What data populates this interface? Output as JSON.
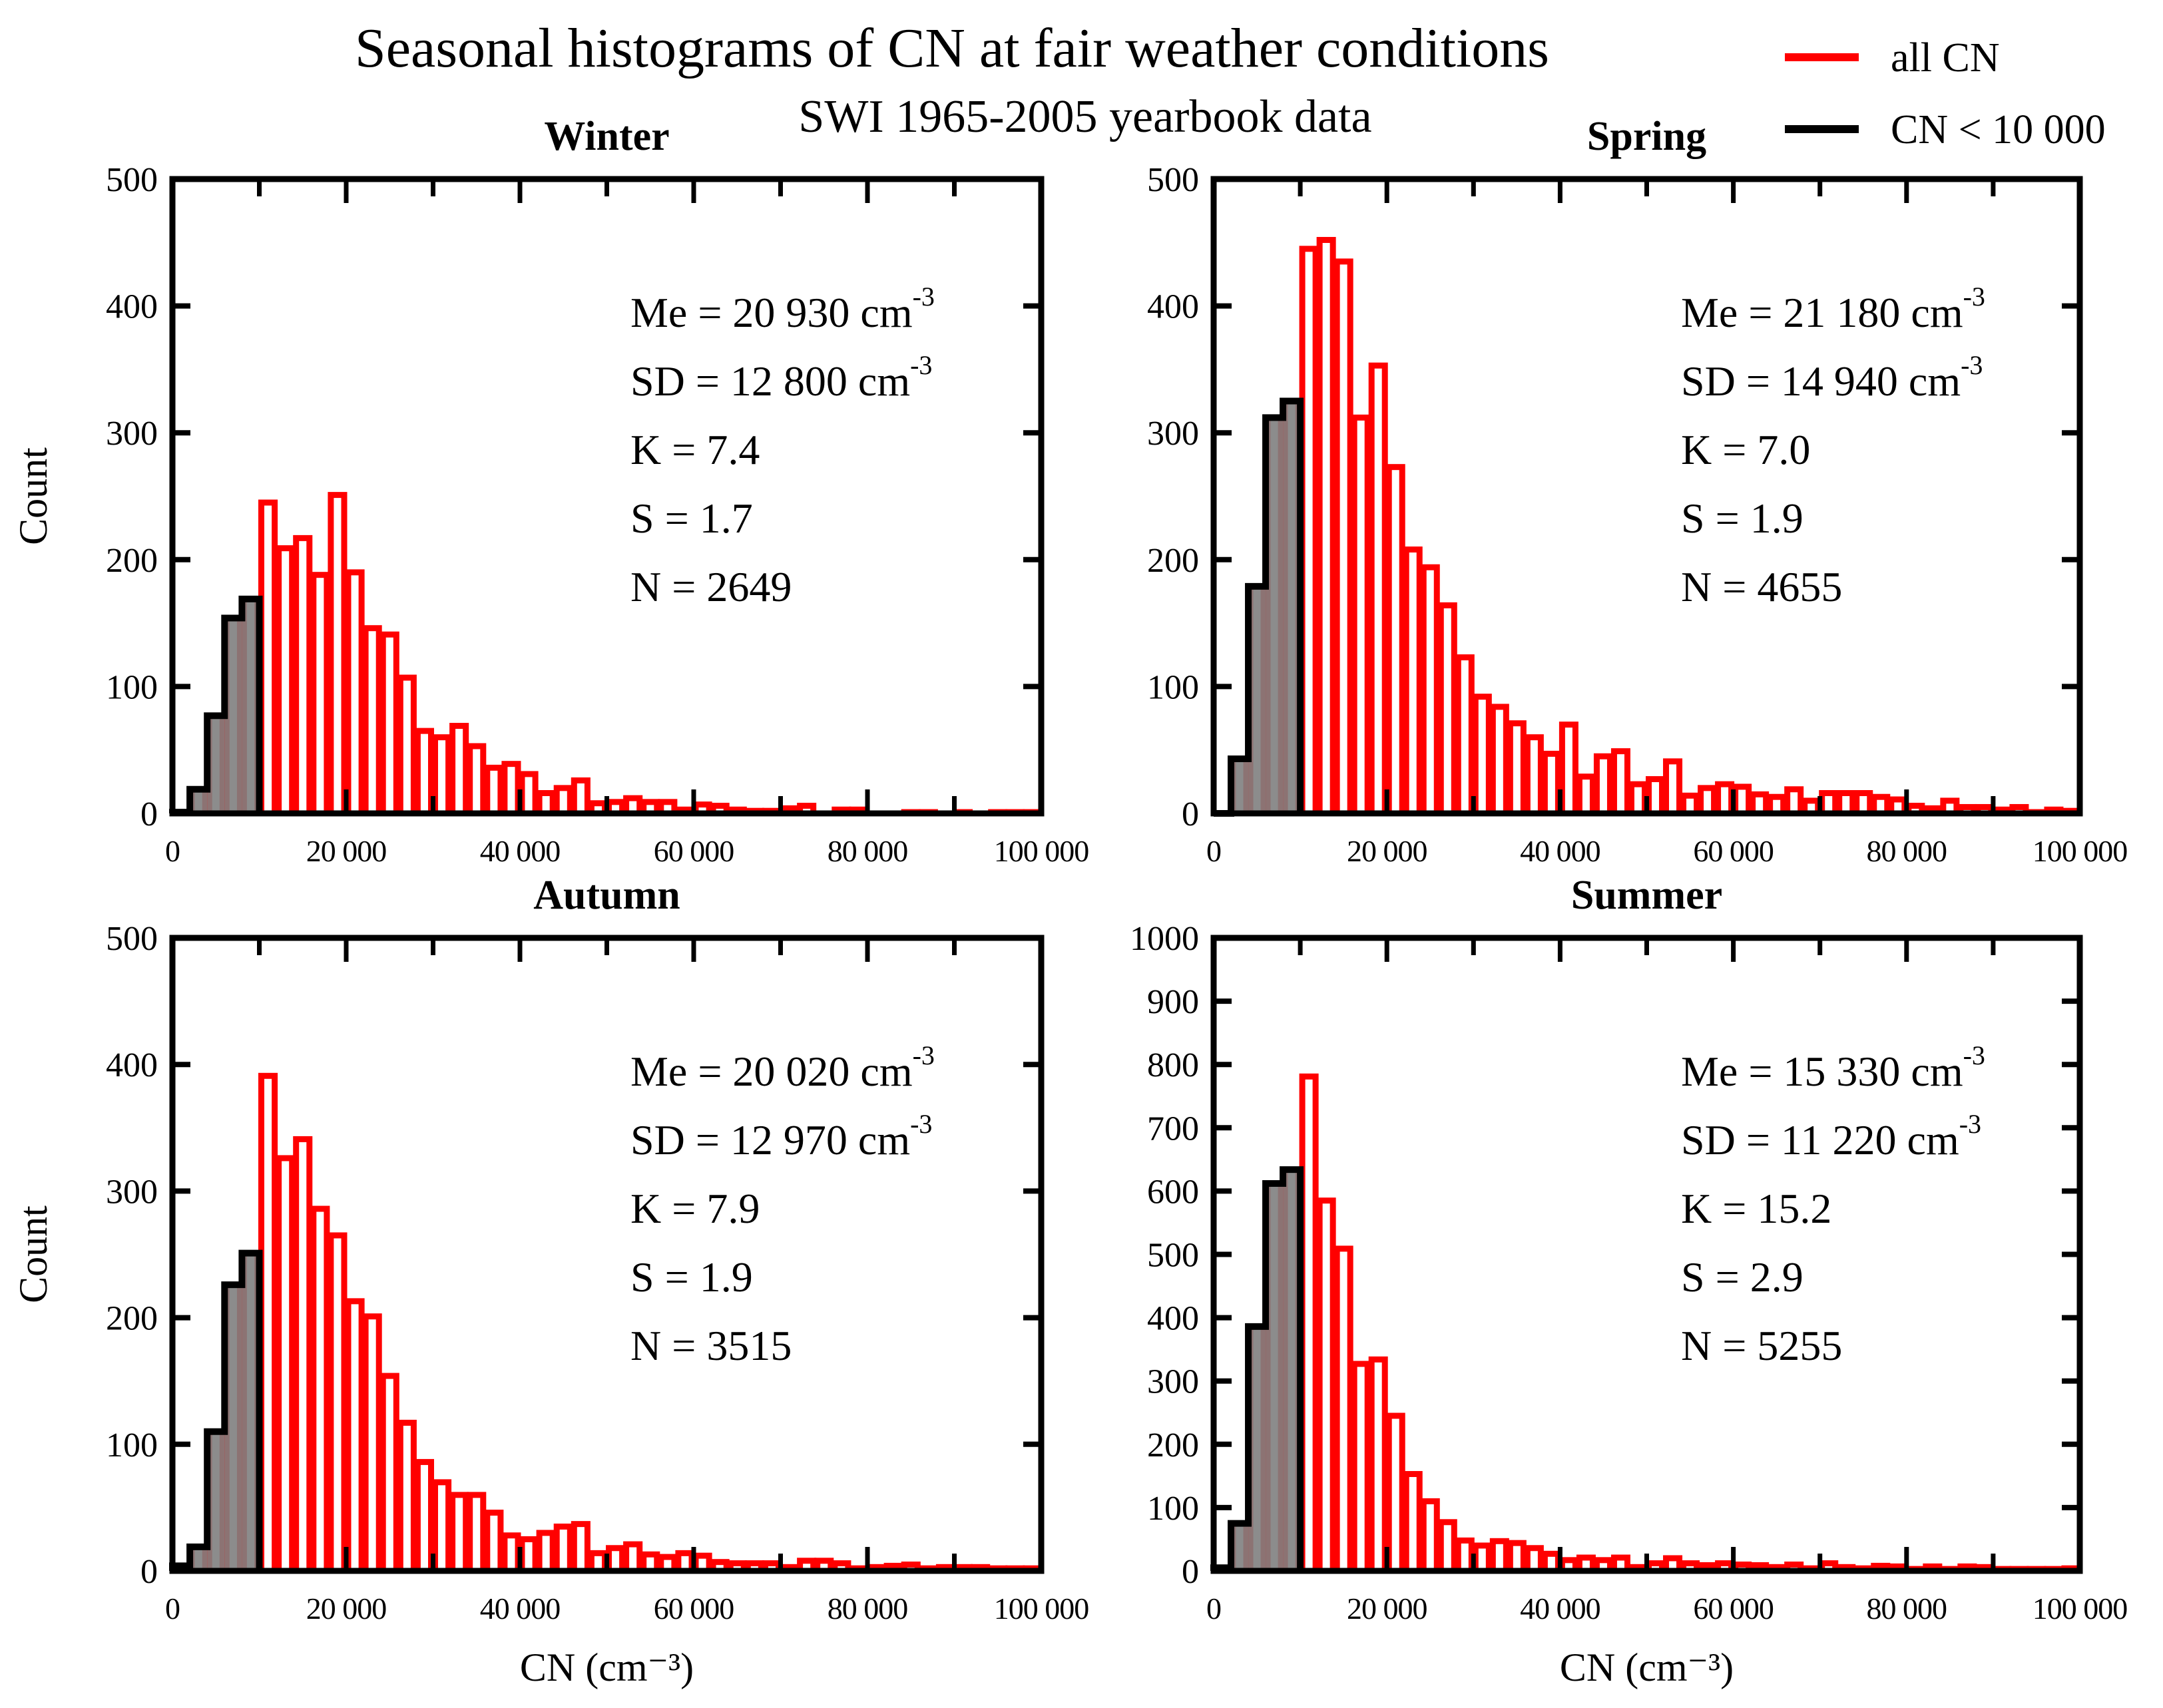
{
  "chart_data": {
    "type": "bar",
    "title": "Seasonal histograms of CN at fair weather conditions",
    "subtitle": "SWI 1965-2005 yearbook data",
    "legend": {
      "placement": "top-right",
      "entries": [
        {
          "label": "all CN",
          "color": "#ff0000"
        },
        {
          "label": "CN < 10 000",
          "color": "#000000"
        }
      ]
    },
    "bin_width": 2000,
    "bin_start": 0,
    "xlim": [
      0,
      100000
    ],
    "xticks": [
      0,
      20000,
      40000,
      60000,
      80000,
      100000
    ],
    "xtick_labels": [
      "0",
      "20 000",
      "40 000",
      "60 000",
      "80 000",
      "100 000"
    ],
    "threshold": 10000,
    "panels": [
      {
        "name": "Winter",
        "ylim": [
          0,
          500
        ],
        "yticks": [
          0,
          100,
          200,
          300,
          400,
          500
        ],
        "ylabel": "Count",
        "xlabel": "",
        "stats": {
          "Me": "20 930",
          "SD": "12 800",
          "K": "7.4",
          "S": "1.7",
          "N": "2649"
        },
        "values": [
          1,
          19,
          77,
          154,
          169,
          245,
          209,
          217,
          188,
          251,
          190,
          146,
          141,
          107,
          65,
          60,
          69,
          53,
          36,
          39,
          31,
          16,
          20,
          26,
          8,
          9,
          12,
          9,
          9,
          3,
          7,
          6,
          3,
          2,
          2,
          4,
          6,
          0,
          3,
          3,
          0,
          0,
          1,
          1,
          0,
          1,
          0,
          1,
          1,
          1
        ]
      },
      {
        "name": "Spring",
        "ylim": [
          0,
          500
        ],
        "yticks": [
          0,
          100,
          200,
          300,
          400,
          500
        ],
        "ylabel": "",
        "xlabel": "",
        "stats": {
          "Me": "21 180",
          "SD": "14 940",
          "K": "7.0",
          "S": "1.9",
          "N": "4655"
        },
        "values": [
          0,
          43,
          179,
          312,
          325,
          445,
          452,
          435,
          312,
          353,
          273,
          208,
          194,
          164,
          123,
          92,
          84,
          71,
          60,
          47,
          70,
          29,
          45,
          49,
          23,
          27,
          41,
          14,
          20,
          23,
          21,
          15,
          13,
          19,
          10,
          16,
          16,
          16,
          13,
          11,
          6,
          4,
          10,
          5,
          5,
          3,
          5,
          1,
          3,
          2
        ]
      },
      {
        "name": "Autumn",
        "ylim": [
          0,
          500
        ],
        "yticks": [
          0,
          100,
          200,
          300,
          400,
          500
        ],
        "ylabel": "Count",
        "xlabel": "CN (cm⁻³)",
        "stats": {
          "Me": "20 020",
          "SD": "12 970",
          "K": "7.9",
          "S": "1.9",
          "N": "3515"
        },
        "values": [
          4,
          19,
          110,
          226,
          251,
          391,
          326,
          341,
          286,
          265,
          213,
          201,
          154,
          117,
          86,
          70,
          60,
          60,
          46,
          28,
          25,
          30,
          35,
          37,
          14,
          18,
          21,
          13,
          11,
          14,
          12,
          7,
          6,
          6,
          6,
          3,
          8,
          8,
          6,
          2,
          3,
          4,
          5,
          2,
          3,
          3,
          3,
          2,
          2,
          2
        ]
      },
      {
        "name": "Summer",
        "ylim": [
          0,
          1000
        ],
        "yticks": [
          0,
          100,
          200,
          300,
          400,
          500,
          600,
          700,
          800,
          900,
          1000
        ],
        "ylabel": "",
        "xlabel": "CN (cm⁻³)",
        "stats": {
          "Me": "15 330",
          "SD": "11 220",
          "K": "15.2",
          "S": "2.9",
          "N": "5255"
        },
        "values": [
          5,
          75,
          386,
          612,
          634,
          781,
          585,
          509,
          327,
          334,
          245,
          153,
          110,
          77,
          48,
          40,
          47,
          44,
          36,
          27,
          17,
          21,
          17,
          21,
          6,
          12,
          20,
          12,
          9,
          12,
          10,
          9,
          6,
          10,
          4,
          12,
          6,
          4,
          8,
          7,
          3,
          7,
          3,
          7,
          6,
          3,
          3,
          3,
          3,
          4
        ]
      }
    ],
    "stat_labels": {
      "Me": "Me = ",
      "SD": "SD = ",
      "K": "K = ",
      "S": "S = ",
      "N": "N = "
    },
    "unit": " cm",
    "unit_sup": "-3",
    "colors": {
      "all": "#ff0000",
      "below": "#000000",
      "below_fill": "#808080"
    }
  }
}
